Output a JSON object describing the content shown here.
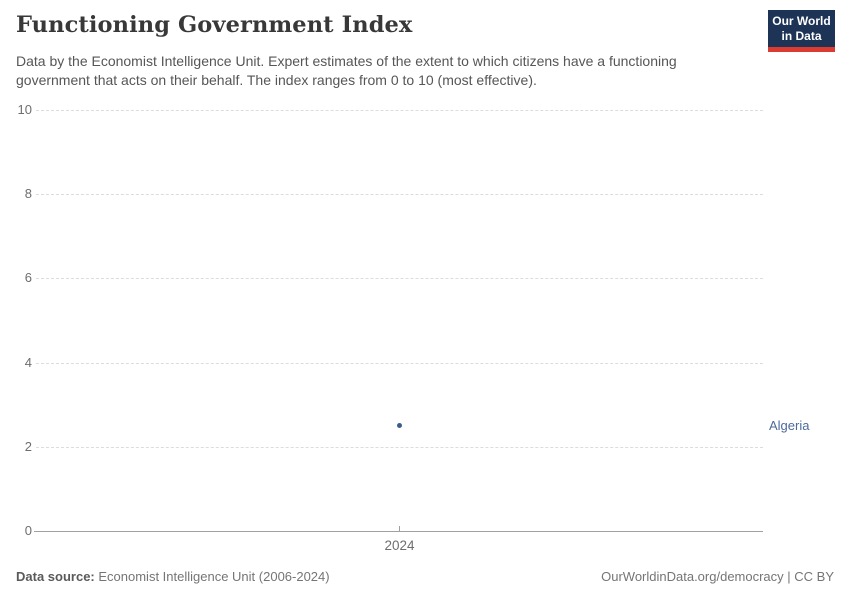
{
  "header": {
    "title": "Functioning Government Index",
    "subtitle": "Data by the Economist Intelligence Unit. Expert estimates of the extent to which citizens have a functioning government that acts on their behalf. The index ranges from 0 to 10 (most effective).",
    "logo": {
      "line1": "Our World",
      "line2": "in Data",
      "bg_color": "#1d3456",
      "accent_color": "#dc3b32"
    }
  },
  "chart_data": {
    "type": "scatter",
    "title": "Functioning Government Index",
    "x": [
      2024
    ],
    "xticks": [
      "2024"
    ],
    "series": [
      {
        "name": "Algeria",
        "values": [
          2.5
        ],
        "color": "#3d5c8e",
        "label_color": "#4c6a9c"
      }
    ],
    "xlabel": "",
    "ylabel": "",
    "ylim": [
      0,
      10
    ],
    "yticks": [
      0,
      2,
      4,
      6,
      8,
      10
    ],
    "grid": "horizontal-dashed",
    "legend_position": "right-of-plot"
  },
  "footer": {
    "source_label": "Data source:",
    "source_text": " Economist Intelligence Unit (2006-2024)",
    "link_text": "OurWorldinData.org/democracy | CC BY"
  }
}
